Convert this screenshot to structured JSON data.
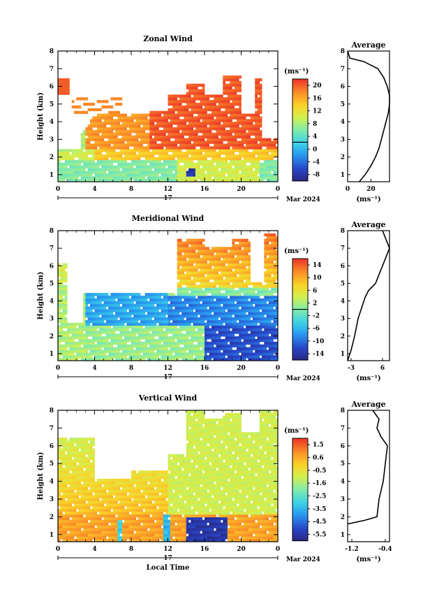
{
  "figure": {
    "x_axis_label": "Local Time",
    "date_label": "Mar 2024",
    "day_label": "17",
    "x_ticks": [
      "0",
      "4",
      "8",
      "12",
      "16",
      "20",
      "0"
    ],
    "y_ticks": [
      "1",
      "2",
      "3",
      "4",
      "5",
      "6",
      "7",
      "8"
    ],
    "y_axis_label": "Height (km)",
    "colorbar_unit": "(ms⁻¹)",
    "average_title": "Average",
    "average_unit": "(ms⁻¹)"
  },
  "chart_data": [
    {
      "type": "heatmap",
      "title": "Zonal Wind",
      "xlabel": "",
      "ylabel": "Height (km)",
      "xlim_hours": [
        0,
        24
      ],
      "ylim_km": [
        0.6,
        8.0
      ],
      "colorbar": {
        "ticks": [
          20,
          16,
          12,
          8,
          4,
          0,
          -4,
          -8
        ],
        "range": [
          -10,
          22
        ]
      },
      "field_summary": [
        {
          "hours": [
            0,
            3
          ],
          "height_km": [
            0.6,
            2.5
          ],
          "value_ms": 4
        },
        {
          "hours": [
            3,
            10
          ],
          "height_km": [
            2.5,
            4.5
          ],
          "value_ms": 18
        },
        {
          "hours": [
            10,
            23
          ],
          "height_km": [
            2.5,
            6.8
          ],
          "value_ms": 20
        },
        {
          "hours": [
            14,
            15
          ],
          "height_km": [
            0.9,
            1.3
          ],
          "value_ms": -8
        }
      ],
      "average_profile": {
        "xlim": [
          0,
          36
        ],
        "x_ticks": [
          0,
          20
        ],
        "points": [
          [
            10,
            0.6
          ],
          [
            15,
            1.0
          ],
          [
            20,
            1.5
          ],
          [
            24,
            2.0
          ],
          [
            27,
            2.5
          ],
          [
            29,
            3.0
          ],
          [
            31,
            3.5
          ],
          [
            33,
            4.0
          ],
          [
            35,
            4.5
          ],
          [
            36,
            5.0
          ],
          [
            36,
            5.5
          ],
          [
            34,
            6.0
          ],
          [
            31,
            6.5
          ],
          [
            26,
            7.0
          ],
          [
            14,
            7.4
          ],
          [
            2,
            7.6
          ],
          [
            0,
            8.0
          ]
        ]
      }
    },
    {
      "type": "heatmap",
      "title": "Meridional Wind",
      "xlabel": "",
      "ylabel": "Height (km)",
      "xlim_hours": [
        0,
        24
      ],
      "ylim_km": [
        0.6,
        8.0
      ],
      "colorbar": {
        "ticks": [
          14,
          10,
          6,
          2,
          -2,
          -6,
          -10,
          -14
        ],
        "range": [
          -16,
          16
        ]
      },
      "field_summary": [
        {
          "hours": [
            0,
            4
          ],
          "height_km": [
            0.6,
            3.0
          ],
          "value_ms": 2
        },
        {
          "hours": [
            3,
            17
          ],
          "height_km": [
            2.5,
            4.5
          ],
          "value_ms": -8
        },
        {
          "hours": [
            17,
            24
          ],
          "height_km": [
            0.6,
            3.0
          ],
          "value_ms": -12
        },
        {
          "hours": [
            16,
            21
          ],
          "height_km": [
            4.5,
            7.2
          ],
          "value_ms": 8
        }
      ],
      "average_profile": {
        "xlim": [
          -4,
          8
        ],
        "x_ticks": [
          -3,
          6
        ],
        "points": [
          [
            -4,
            0.6
          ],
          [
            -3,
            1.2
          ],
          [
            -2,
            2.0
          ],
          [
            -1,
            3.0
          ],
          [
            0,
            3.6
          ],
          [
            1,
            4.2
          ],
          [
            2,
            4.6
          ],
          [
            4,
            5.0
          ],
          [
            5,
            5.5
          ],
          [
            6,
            6.0
          ],
          [
            7,
            6.5
          ],
          [
            8,
            7.0
          ],
          [
            7,
            7.5
          ],
          [
            6,
            8.0
          ]
        ]
      }
    },
    {
      "type": "heatmap",
      "title": "Vertical Wind",
      "xlabel": "Local Time",
      "ylabel": "Height (km)",
      "xlim_hours": [
        0,
        24
      ],
      "ylim_km": [
        0.6,
        8.0
      ],
      "colorbar": {
        "ticks": [
          1.5,
          0.6,
          -0.5,
          -1.6,
          -2.5,
          -3.5,
          -4.5,
          -5.5
        ],
        "range": [
          -6,
          2
        ]
      },
      "field_summary": [
        {
          "hours": [
            0,
            12
          ],
          "height_km": [
            0.6,
            4.0
          ],
          "value_ms": 0.2
        },
        {
          "hours": [
            14,
            19
          ],
          "height_km": [
            0.6,
            2.0
          ],
          "value_ms": -5.5
        },
        {
          "hours": [
            12,
            24
          ],
          "height_km": [
            2.0,
            8.0
          ],
          "value_ms": -1.0
        }
      ],
      "average_profile": {
        "xlim": [
          -1.3,
          -0.3
        ],
        "x_ticks": [
          -1.2,
          -0.4
        ],
        "points": [
          [
            -1.3,
            1.6
          ],
          [
            -0.9,
            1.8
          ],
          [
            -0.6,
            2.0
          ],
          [
            -0.55,
            3.0
          ],
          [
            -0.45,
            4.0
          ],
          [
            -0.4,
            5.0
          ],
          [
            -0.35,
            6.0
          ],
          [
            -0.5,
            6.5
          ],
          [
            -0.6,
            7.0
          ],
          [
            -0.55,
            7.5
          ],
          [
            -0.7,
            8.0
          ]
        ]
      }
    }
  ]
}
